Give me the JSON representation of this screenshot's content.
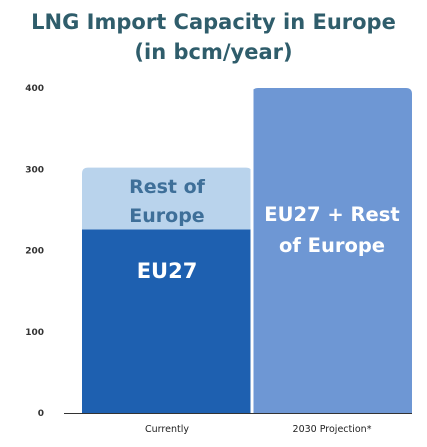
{
  "chart_data": {
    "type": "bar",
    "title_lines": [
      "LNG Import Capacity in Europe",
      "(in bcm/year)"
    ],
    "y_ticks": [
      0,
      100,
      200,
      300,
      400
    ],
    "ylim": [
      0,
      400
    ],
    "grid": false,
    "categories": [
      "Currently",
      "2030 Projection*"
    ],
    "stacked_bars": [
      {
        "category": "Currently",
        "segments": [
          {
            "label": "EU27",
            "start": 0,
            "end": 226,
            "color": "#1e60b0"
          },
          {
            "label": "Rest of Europe",
            "start": 226,
            "end": 302,
            "color": "#b9d3ec",
            "label_lines": [
              "Rest of",
              "Europe"
            ]
          }
        ]
      },
      {
        "category": "2030 Projection*",
        "segments": [
          {
            "label": "EU27 + Rest of Europe",
            "start": 0,
            "end": 400,
            "color": "#6e97d4",
            "label_lines": [
              "EU27 + Rest",
              "of Europe"
            ]
          }
        ]
      }
    ]
  }
}
